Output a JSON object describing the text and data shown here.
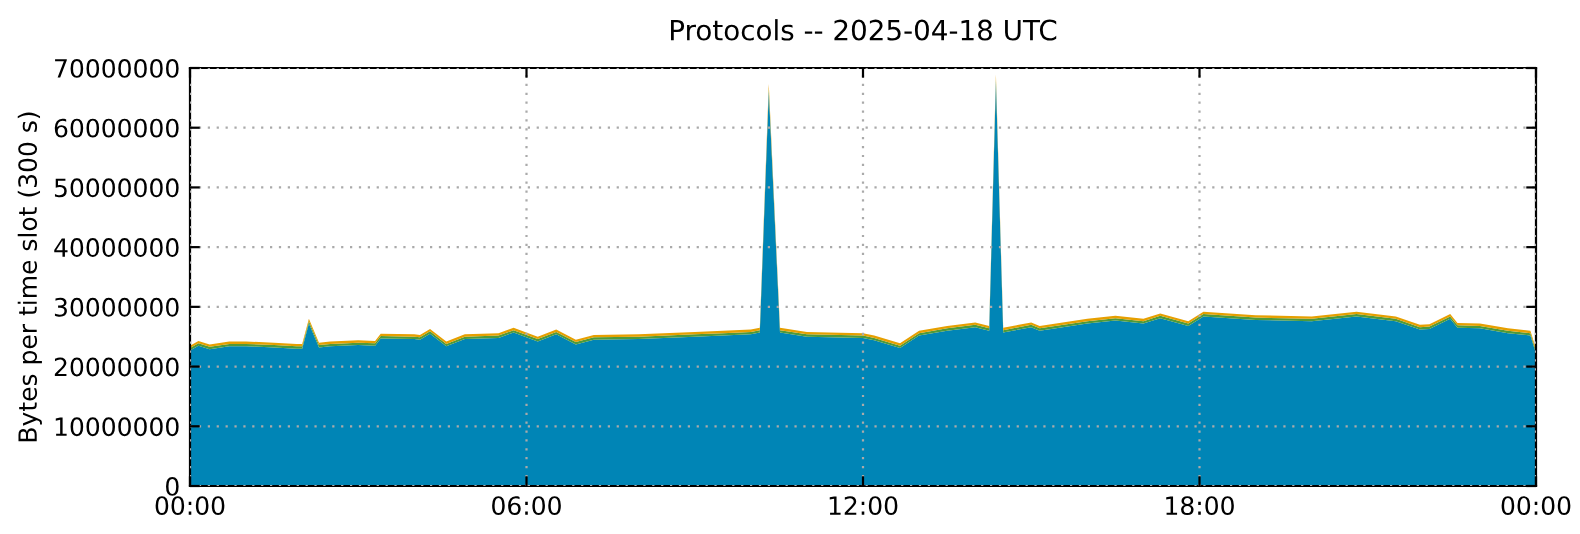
{
  "chart_data": {
    "type": "area",
    "stacked": true,
    "title": "Protocols -- 2025-04-18 UTC",
    "ylabel": "Bytes per time slot (300 s)",
    "x": [
      0,
      0.15,
      0.35,
      0.7,
      1.0,
      1.5,
      1.9,
      2.0,
      2.12,
      2.3,
      2.5,
      3.0,
      3.3,
      3.4,
      4.0,
      4.1,
      4.28,
      4.57,
      4.9,
      5.5,
      5.77,
      6.2,
      6.53,
      6.88,
      7.2,
      8.0,
      9.0,
      9.5,
      10.0,
      10.16,
      10.32,
      10.52,
      11.0,
      12.0,
      12.2,
      12.66,
      13.0,
      13.5,
      14.0,
      14.25,
      14.37,
      14.5,
      15.0,
      15.15,
      16.0,
      16.5,
      17.0,
      17.3,
      17.8,
      18.07,
      19.0,
      20.0,
      20.8,
      21.5,
      21.93,
      22.1,
      22.47,
      22.6,
      23.0,
      23.5,
      23.9,
      24.0
    ],
    "series": [
      {
        "color": "#0085b6",
        "values": [
          22700000,
          23500000,
          22900000,
          23400000,
          23400000,
          23200000,
          23000000,
          23000000,
          27200000,
          23200000,
          23400000,
          23600000,
          23500000,
          24700000,
          24600000,
          24500000,
          25500000,
          23400000,
          24600000,
          24800000,
          25700000,
          24200000,
          25400000,
          23700000,
          24500000,
          24600000,
          25000000,
          25200000,
          25400000,
          25700000,
          66100000,
          25700000,
          25000000,
          24800000,
          24400000,
          23100000,
          25200000,
          26000000,
          26600000,
          26000000,
          67700000,
          25700000,
          26600000,
          26000000,
          27200000,
          27700000,
          27200000,
          28100000,
          26800000,
          28400000,
          27800000,
          27600000,
          28400000,
          27600000,
          26200000,
          26300000,
          28000000,
          26500000,
          26400000,
          25600000,
          25200000,
          22200000
        ]
      },
      {
        "color": "#4e9a3a",
        "values": [
          400000,
          400000,
          400000,
          400000,
          400000,
          400000,
          400000,
          400000,
          400000,
          400000,
          400000,
          400000,
          400000,
          400000,
          400000,
          400000,
          400000,
          400000,
          400000,
          400000,
          400000,
          400000,
          400000,
          400000,
          400000,
          400000,
          400000,
          400000,
          400000,
          400000,
          400000,
          400000,
          400000,
          400000,
          400000,
          400000,
          400000,
          400000,
          400000,
          400000,
          400000,
          400000,
          400000,
          400000,
          400000,
          400000,
          400000,
          400000,
          400000,
          400000,
          400000,
          400000,
          400000,
          400000,
          400000,
          400000,
          400000,
          400000,
          400000,
          400000,
          400000,
          400000
        ]
      },
      {
        "color": "#e69f00",
        "values": [
          400000,
          400000,
          400000,
          400000,
          400000,
          400000,
          400000,
          400000,
          400000,
          400000,
          400000,
          400000,
          400000,
          400000,
          400000,
          400000,
          400000,
          400000,
          400000,
          400000,
          400000,
          400000,
          400000,
          400000,
          400000,
          400000,
          400000,
          400000,
          400000,
          400000,
          800000,
          400000,
          400000,
          400000,
          400000,
          400000,
          400000,
          400000,
          400000,
          400000,
          800000,
          400000,
          400000,
          400000,
          400000,
          400000,
          400000,
          400000,
          400000,
          400000,
          400000,
          400000,
          400000,
          400000,
          400000,
          400000,
          400000,
          400000,
          400000,
          400000,
          400000,
          400000
        ]
      }
    ],
    "xlim": [
      0,
      24
    ],
    "xticks": [
      {
        "value": 0,
        "label": "00:00"
      },
      {
        "value": 6,
        "label": "06:00"
      },
      {
        "value": 12,
        "label": "12:00"
      },
      {
        "value": 18,
        "label": "18:00"
      },
      {
        "value": 24,
        "label": "00:00"
      }
    ],
    "ylim": [
      0,
      70000000
    ],
    "yticks": [
      0,
      10000000,
      20000000,
      30000000,
      40000000,
      50000000,
      60000000,
      70000000
    ],
    "grid": true
  }
}
